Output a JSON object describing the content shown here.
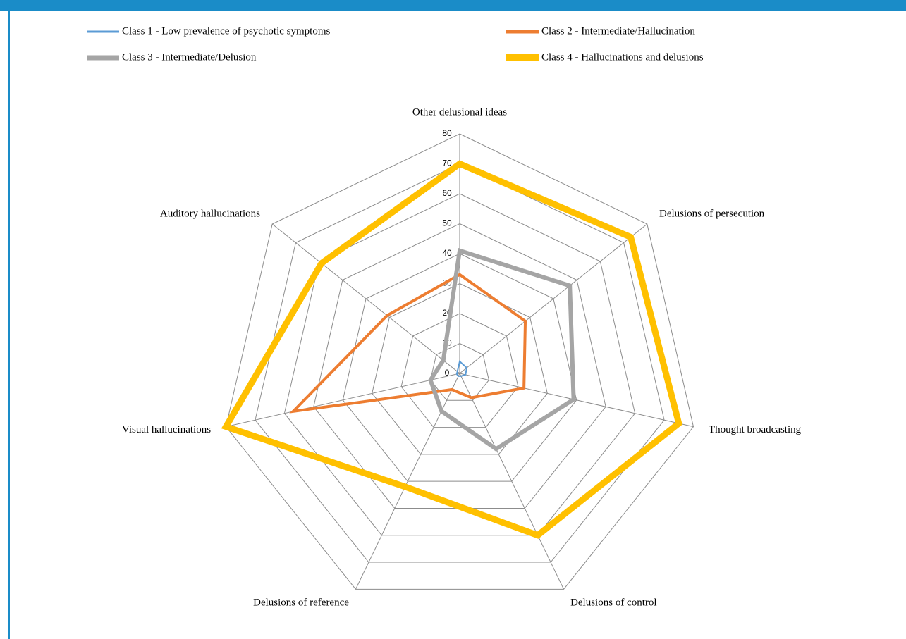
{
  "chart_data": {
    "type": "radar",
    "categories": [
      "Other delusional ideas",
      "Delusions of persecution",
      "Thought broadcasting",
      "Delusions of control",
      "Delusions of reference",
      "Visual hallucinations",
      "Auditory hallucinations"
    ],
    "series": [
      {
        "name": "Class 1 - Low prevalence of psychotic symptoms",
        "color": "#5b9bd5",
        "values": [
          4,
          3,
          2,
          1,
          1,
          1,
          1
        ]
      },
      {
        "name": "Class 2 - Intermediate/Hallucination",
        "color": "#ed7d31",
        "values": [
          33,
          28,
          22,
          9,
          6,
          57,
          31
        ]
      },
      {
        "name": "Class 3 - Intermediate/Delusion",
        "color": "#a5a5a5",
        "values": [
          41,
          47,
          39,
          28,
          14,
          10,
          7
        ]
      },
      {
        "name": "Class 4 - Hallucinations and delusions",
        "color": "#ffc000",
        "values": [
          70,
          73,
          75,
          60,
          42,
          80,
          59
        ]
      }
    ],
    "ylim": [
      0,
      80
    ],
    "yticks": [
      0,
      10,
      20,
      30,
      40,
      50,
      60,
      70,
      80
    ],
    "grid": true
  }
}
